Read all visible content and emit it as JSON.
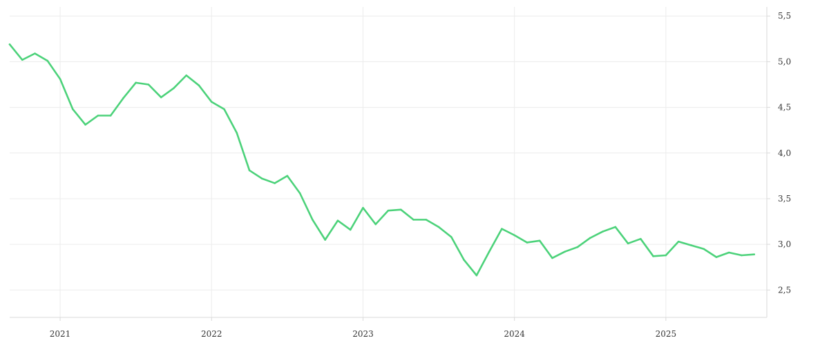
{
  "chart_data": {
    "type": "line",
    "title": "",
    "xlabel": "",
    "ylabel": "",
    "x_ticks": [
      "2021",
      "2022",
      "2023",
      "2024",
      "2025"
    ],
    "y_ticks": [
      "2,5",
      "3,0",
      "3,5",
      "4,0",
      "4,5",
      "5,0",
      "5,5"
    ],
    "ylim": [
      2.2,
      5.6
    ],
    "xlim": [
      "2020-09-01",
      "2025-09-01"
    ],
    "grid": true,
    "line_color": "#4cd27a",
    "series": [
      {
        "x": [
          "2020-09",
          "2020-10",
          "2020-11",
          "2020-12",
          "2021-01",
          "2021-02",
          "2021-03",
          "2021-04",
          "2021-05",
          "2021-06",
          "2021-07",
          "2021-08",
          "2021-09",
          "2021-10",
          "2021-11",
          "2021-12",
          "2022-01",
          "2022-02",
          "2022-03",
          "2022-04",
          "2022-05",
          "2022-06",
          "2022-07",
          "2022-08",
          "2022-09",
          "2022-10",
          "2022-11",
          "2022-12",
          "2023-01",
          "2023-02",
          "2023-03",
          "2023-04",
          "2023-05",
          "2023-06",
          "2023-07",
          "2023-08",
          "2023-09",
          "2023-10",
          "2023-11",
          "2023-12",
          "2024-01",
          "2024-02",
          "2024-03",
          "2024-04",
          "2024-05",
          "2024-06",
          "2024-07",
          "2024-08",
          "2024-09",
          "2024-10",
          "2024-11",
          "2024-12",
          "2025-01",
          "2025-02",
          "2025-03",
          "2025-04",
          "2025-05",
          "2025-06",
          "2025-07",
          "2025-08"
        ],
        "values": [
          5.19,
          5.02,
          5.09,
          5.01,
          4.81,
          4.48,
          4.31,
          4.41,
          4.41,
          4.6,
          4.77,
          4.75,
          4.61,
          4.71,
          4.85,
          4.74,
          4.56,
          4.48,
          4.22,
          3.81,
          3.72,
          3.67,
          3.75,
          3.56,
          3.27,
          3.05,
          3.26,
          3.16,
          3.4,
          3.22,
          3.37,
          3.38,
          3.27,
          3.27,
          3.19,
          3.08,
          2.83,
          2.66,
          2.92,
          3.17,
          3.1,
          3.02,
          3.04,
          2.85,
          2.92,
          2.97,
          3.07,
          3.14,
          3.19,
          3.01,
          3.06,
          2.87,
          2.88,
          3.03,
          2.99,
          2.95,
          2.86,
          2.91,
          2.88,
          2.89
        ]
      }
    ]
  }
}
